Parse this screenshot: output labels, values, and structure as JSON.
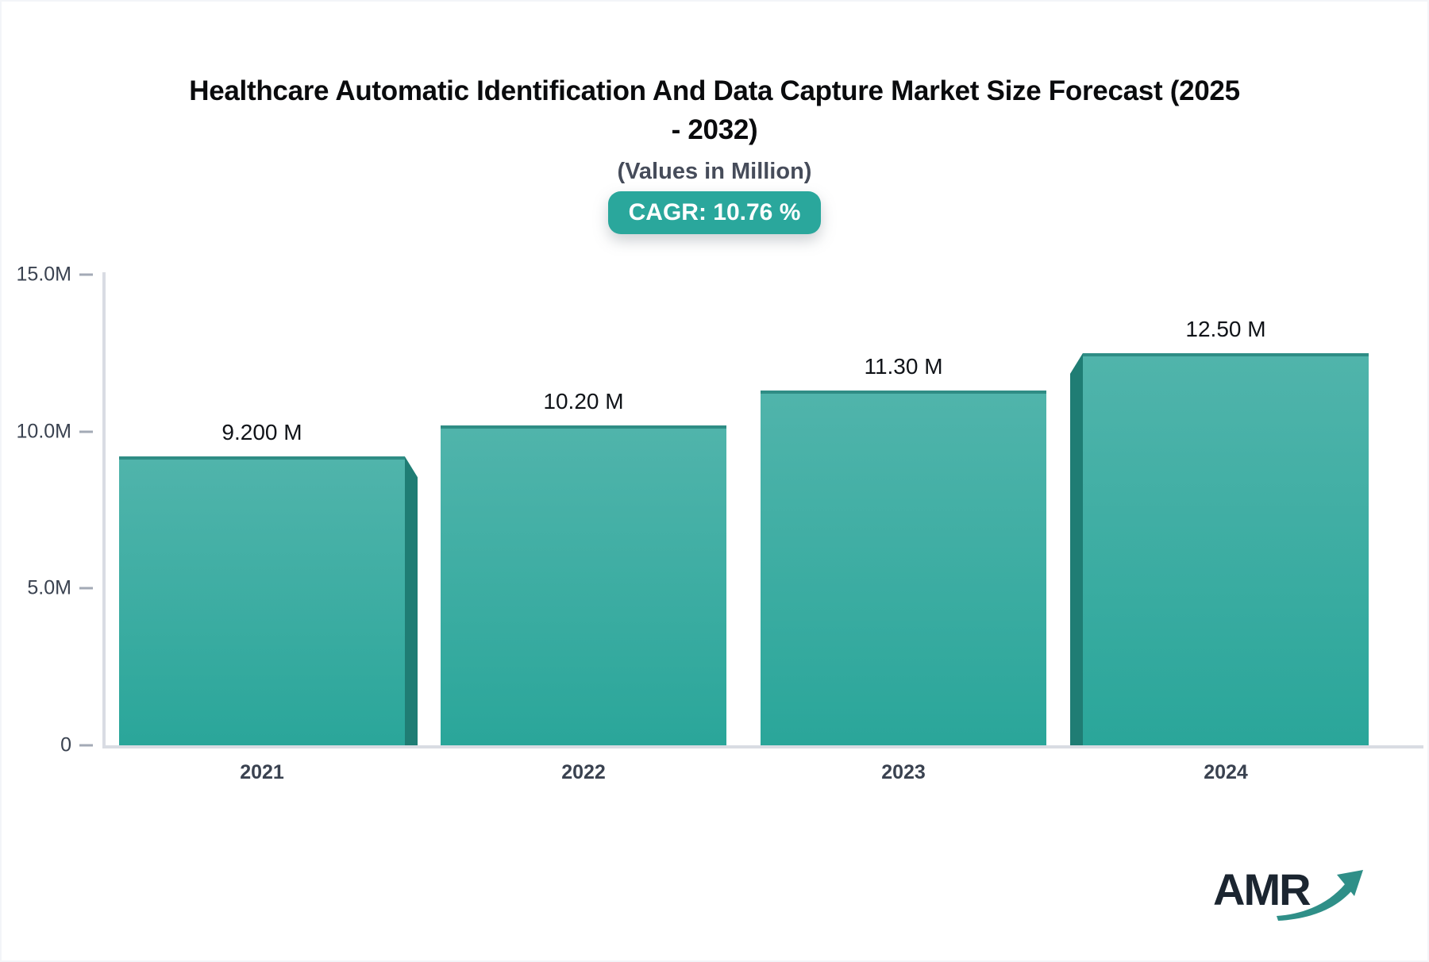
{
  "chart_data": {
    "type": "bar",
    "title": "Healthcare Automatic Identification And Data Capture Market Size Forecast (2025 - 2032)",
    "title_lines": [
      "Healthcare Automatic Identification And Data Capture Market Size Forecast (2025",
      "- 2032)"
    ],
    "subtitle": "(Values in Million)",
    "badge_label": "CAGR: 10.76 %",
    "cagr_percent": 10.76,
    "categories": [
      "2021",
      "2022",
      "2023",
      "2024"
    ],
    "values": [
      9.2,
      10.2,
      11.3,
      12.5
    ],
    "value_labels": [
      "9.200 M",
      "10.20 M",
      "11.30 M",
      "12.50 M"
    ],
    "unit": "Million",
    "xlabel": "",
    "ylabel": "",
    "ylim": [
      0,
      15
    ],
    "ytick_values": [
      15,
      10,
      5,
      0
    ],
    "ytick_labels": [
      "15.0M",
      "10.0M",
      "5.0M",
      "0"
    ],
    "grid": false,
    "legend_position": "none",
    "colors": {
      "bar_gradient_top": "#50b4ab",
      "bar_gradient_bottom": "#2aa69a",
      "bar_top_edge": "#2f8d85",
      "bar_3d_side": "#1f7d74",
      "badge_background": "#2aa79c",
      "badge_text": "#ffffff",
      "title_text": "#0a0b0d",
      "subtitle_text": "#464c5a",
      "axis_label_text": "#3a4250",
      "axis_line": "#d9dce3"
    }
  },
  "logo": {
    "text": "AMR",
    "arrow_icon": "growth-arrow-icon",
    "arrow_color": "#2f8f88"
  }
}
